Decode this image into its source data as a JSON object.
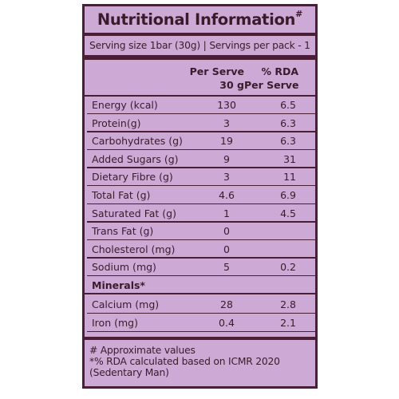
{
  "title": "Nutritional Information",
  "title_mark": "#",
  "serving_text": "Serving size 1bar (30g) | Servings per pack - 1",
  "columns": {
    "per_serve_line1": "Per Serve",
    "per_serve_line2": "30 g",
    "rda_line1": "% RDA",
    "rda_line2": "Per Serve"
  },
  "rows": [
    {
      "label": "Energy (kcal)",
      "per_serve": "130",
      "rda": "6.5"
    },
    {
      "label": "Protein(g)",
      "per_serve": "3",
      "rda": "6.3"
    },
    {
      "label": "Carbohydrates (g)",
      "per_serve": "19",
      "rda": "6.3"
    },
    {
      "label": "Added Sugars (g)",
      "per_serve": "9",
      "rda": "31"
    },
    {
      "label": "Dietary Fibre (g)",
      "per_serve": "3",
      "rda": "11"
    },
    {
      "label": "Total Fat (g)",
      "per_serve": "4.6",
      "rda": "6.9"
    },
    {
      "label": "Saturated Fat (g)",
      "per_serve": "1",
      "rda": "4.5"
    },
    {
      "label": "Trans Fat (g)",
      "per_serve": "0",
      "rda": ""
    },
    {
      "label": "Cholesterol (mg)",
      "per_serve": "0",
      "rda": ""
    },
    {
      "label": "Sodium (mg)",
      "per_serve": "5",
      "rda": "0.2"
    }
  ],
  "minerals_heading": "Minerals*",
  "mineral_rows": [
    {
      "label": "Calcium (mg)",
      "per_serve": "28",
      "rda": "2.8"
    },
    {
      "label": "Iron (mg)",
      "per_serve": "0.4",
      "rda": "2.1"
    }
  ],
  "footnotes": [
    "# Approximate values",
    "*% RDA calculated based on ICMR 2020",
    "(Sedentary Man)"
  ],
  "colors": {
    "background": "#cda9d6",
    "ink": "#4a1e35"
  }
}
